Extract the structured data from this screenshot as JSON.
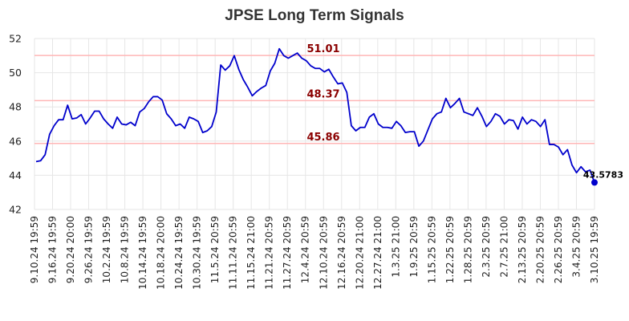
{
  "chart_data": {
    "type": "line",
    "title": "JPSE Long Term Signals",
    "xlabel": "",
    "ylabel": "",
    "ylim": [
      42,
      52
    ],
    "yticks": [
      42,
      44,
      46,
      48,
      50,
      52
    ],
    "grid": true,
    "x_tick_labels": [
      "9.10.24 19:59",
      "9.16.24 19:59",
      "9.20.24 20:00",
      "9.26.24 19:59",
      "10.2.24 19:59",
      "10.8.24 19:59",
      "10.14.24 19:59",
      "10.18.24 20:00",
      "10.24.24 19:59",
      "10.30.24 19:59",
      "11.5.24 20:59",
      "11.11.24 20:59",
      "11.15.24 21:00",
      "11.21.24 20:59",
      "11.27.24 20:59",
      "12.4.24 20:59",
      "12.10.24 20:59",
      "12.16.24 20:59",
      "12.20.24 21:00",
      "12.27.24 21:00",
      "1.3.25 21:00",
      "1.9.25 20:59",
      "1.15.25 20:59",
      "1.22.25 20:59",
      "1.28.25 20:59",
      "2.3.25 20:59",
      "2.7.25 21:00",
      "2.13.25 20:59",
      "2.20.25 20:59",
      "2.26.25 20:59",
      "3.4.25 20:59",
      "3.10.25 19:59"
    ],
    "horizontal_lines": [
      {
        "value": 51.01,
        "label": "51.01",
        "color": "#ffb6b6"
      },
      {
        "value": 48.37,
        "label": "48.37",
        "color": "#ffb6b6"
      },
      {
        "value": 45.86,
        "label": "45.86",
        "color": "#ffb6b6"
      }
    ],
    "last_value_label": "43.5783",
    "line_color": "#0000cc",
    "series": [
      {
        "values": [
          44.8,
          44.85,
          45.2,
          46.4,
          46.9,
          47.25,
          47.25,
          48.1,
          47.3,
          47.35,
          47.55,
          47.0,
          47.35,
          47.75,
          47.75,
          47.3,
          47.0,
          46.75,
          47.4,
          47.0,
          46.95,
          47.1,
          46.9,
          47.7,
          47.9,
          48.3,
          48.6,
          48.6,
          48.4,
          47.6,
          47.3,
          46.9,
          47.0,
          46.75,
          47.4,
          47.3,
          47.15,
          46.5,
          46.6,
          46.85,
          47.7,
          50.45,
          50.15,
          50.4,
          51.0,
          50.2,
          49.6,
          49.15,
          48.65,
          48.9,
          49.1,
          49.25,
          50.1,
          50.55,
          51.4,
          51.0,
          50.85,
          51.0,
          51.15,
          50.85,
          50.7,
          50.4,
          50.25,
          50.25,
          50.05,
          50.2,
          49.75,
          49.35,
          49.4,
          48.85,
          46.9,
          46.6,
          46.8,
          46.8,
          47.4,
          47.6,
          47.0,
          46.8,
          46.8,
          46.75,
          47.15,
          46.9,
          46.5,
          46.55,
          46.55,
          45.7,
          46.0,
          46.65,
          47.3,
          47.6,
          47.7,
          48.5,
          47.95,
          48.2,
          48.5,
          47.7,
          47.6,
          47.5,
          47.95,
          47.45,
          46.85,
          47.15,
          47.6,
          47.45,
          47.0,
          47.25,
          47.2,
          46.7,
          47.4,
          47.0,
          47.25,
          47.15,
          46.85,
          47.25,
          45.8,
          45.8,
          45.65,
          45.2,
          45.5,
          44.6,
          44.15,
          44.5,
          44.2,
          44.3,
          43.5783
        ]
      }
    ]
  }
}
